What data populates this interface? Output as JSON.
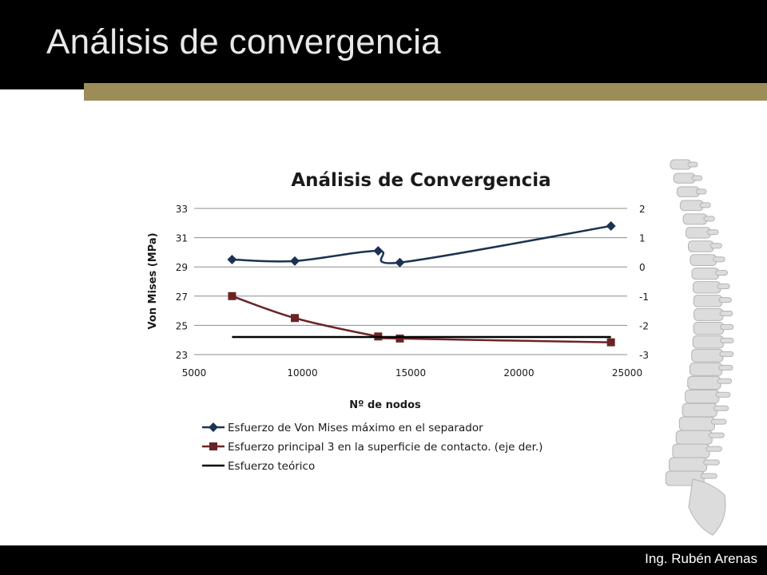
{
  "slide": {
    "title": "Análisis de convergencia",
    "author": "Ing. Rubén Arenas"
  },
  "colors": {
    "header_bg": "#000000",
    "accent_bar": "#9c8d58",
    "series_1": "#1c3252",
    "series_2": "#6b2424",
    "series_3": "#000000",
    "grid": "#8c8c8c"
  },
  "chart_data": {
    "type": "line",
    "title": "Análisis de Convergencia",
    "xlabel": "Nº de nodos",
    "ylabel": "Von Mises (MPa)",
    "y2label": "",
    "xlim": [
      5000,
      25000
    ],
    "ylim": [
      23,
      33
    ],
    "y2lim": [
      -3,
      2
    ],
    "x_ticks": [
      5000,
      10000,
      15000,
      20000,
      25000
    ],
    "y_ticks": [
      23,
      25,
      27,
      29,
      31,
      33
    ],
    "y2_ticks": [
      -3,
      -2,
      -1,
      0,
      1,
      2
    ],
    "grid": true,
    "legend_position": "bottom",
    "series": [
      {
        "name": "Esfuerzo de Von Mises máximo en el separador",
        "axis": "left",
        "marker": "diamond",
        "smooth": true,
        "x": [
          6750,
          9650,
          13500,
          14500,
          24250
        ],
        "y": [
          29.5,
          29.4,
          30.1,
          29.3,
          31.8
        ]
      },
      {
        "name": "Esfuerzo principal 3 en la superficie de contacto. (eje der.)",
        "axis": "right",
        "marker": "square",
        "smooth": true,
        "x": [
          6750,
          9650,
          13500,
          14500,
          24250
        ],
        "y": [
          -1.0,
          -1.75,
          -2.38,
          -2.45,
          -2.58
        ]
      },
      {
        "name": "Esfuerzo teórico",
        "axis": "left",
        "marker": "none",
        "smooth": false,
        "x": [
          6750,
          24250
        ],
        "y": [
          24.2,
          24.2
        ]
      }
    ]
  }
}
